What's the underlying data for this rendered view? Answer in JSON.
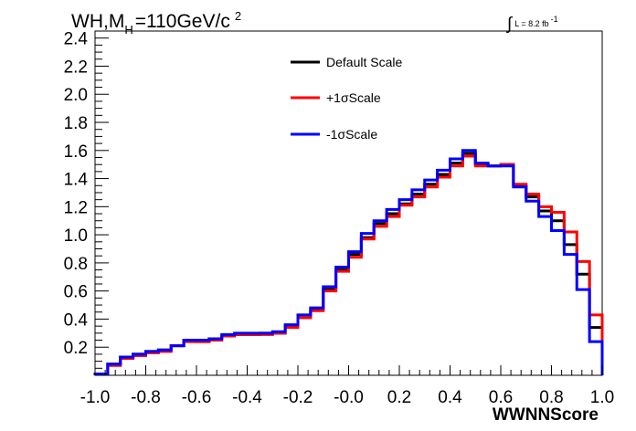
{
  "chart_data": {
    "type": "line",
    "style": "step-histogram",
    "title": {
      "main": "WH,M",
      "subscript": "H",
      "mid": "=110GeV/c",
      "superscript": "2"
    },
    "luminosity": {
      "symbol": "∫",
      "text": "L = 8.2 fb",
      "superscript": "-1"
    },
    "xlabel": "WWNNScore",
    "ylabel": "",
    "xlim": [
      -1.0,
      1.0
    ],
    "ylim": [
      0,
      2.45
    ],
    "x_ticks": [
      "-1.0",
      "-0.8",
      "-0.6",
      "-0.4",
      "-0.2",
      "-0.0",
      "0.2",
      "0.4",
      "0.6",
      "0.8",
      "1.0"
    ],
    "x_tick_values": [
      -1.0,
      -0.8,
      -0.6,
      -0.4,
      -0.2,
      0.0,
      0.2,
      0.4,
      0.6,
      0.8,
      1.0
    ],
    "y_ticks": [
      "0.2",
      "0.4",
      "0.6",
      "0.8",
      "1.0",
      "1.2",
      "1.4",
      "1.6",
      "1.8",
      "2.0",
      "2.2",
      "2.4"
    ],
    "y_tick_values": [
      0.2,
      0.4,
      0.6,
      0.8,
      1.0,
      1.2,
      1.4,
      1.6,
      1.8,
      2.0,
      2.2,
      2.4
    ],
    "grid": false,
    "legend_position": "top-center",
    "bin_edges": [
      -1.0,
      -0.95,
      -0.9,
      -0.85,
      -0.8,
      -0.75,
      -0.7,
      -0.65,
      -0.6,
      -0.55,
      -0.5,
      -0.45,
      -0.4,
      -0.35,
      -0.3,
      -0.25,
      -0.2,
      -0.15,
      -0.1,
      -0.05,
      0.0,
      0.05,
      0.1,
      0.15,
      0.2,
      0.25,
      0.3,
      0.35,
      0.4,
      0.45,
      0.5,
      0.55,
      0.6,
      0.65,
      0.7,
      0.75,
      0.8,
      0.85,
      0.9,
      0.95,
      1.0
    ],
    "series": [
      {
        "name": "Default Scale",
        "color": "#000000",
        "values": [
          0.01,
          0.08,
          0.13,
          0.15,
          0.17,
          0.18,
          0.21,
          0.25,
          0.24,
          0.26,
          0.28,
          0.29,
          0.29,
          0.3,
          0.3,
          0.35,
          0.41,
          0.47,
          0.61,
          0.75,
          0.86,
          0.98,
          1.08,
          1.15,
          1.22,
          1.29,
          1.36,
          1.43,
          1.51,
          1.58,
          1.5,
          1.49,
          1.5,
          1.35,
          1.27,
          1.17,
          1.1,
          0.93,
          0.72,
          0.34
        ]
      },
      {
        "name": "+1σScale",
        "color": "#ff0000",
        "values": [
          0.01,
          0.07,
          0.12,
          0.14,
          0.16,
          0.17,
          0.21,
          0.24,
          0.24,
          0.25,
          0.28,
          0.29,
          0.29,
          0.29,
          0.3,
          0.34,
          0.41,
          0.46,
          0.6,
          0.74,
          0.84,
          0.97,
          1.06,
          1.13,
          1.21,
          1.27,
          1.34,
          1.41,
          1.49,
          1.56,
          1.49,
          1.49,
          1.5,
          1.36,
          1.29,
          1.2,
          1.16,
          1.02,
          0.81,
          0.43
        ]
      },
      {
        "name": "-1σScale",
        "color": "#0000ff",
        "values": [
          0.01,
          0.08,
          0.13,
          0.15,
          0.17,
          0.18,
          0.21,
          0.25,
          0.25,
          0.26,
          0.29,
          0.3,
          0.3,
          0.3,
          0.31,
          0.36,
          0.43,
          0.48,
          0.63,
          0.77,
          0.88,
          1.01,
          1.1,
          1.18,
          1.25,
          1.32,
          1.39,
          1.46,
          1.54,
          1.6,
          1.51,
          1.49,
          1.49,
          1.34,
          1.24,
          1.13,
          1.03,
          0.86,
          0.61,
          0.24
        ]
      }
    ]
  }
}
